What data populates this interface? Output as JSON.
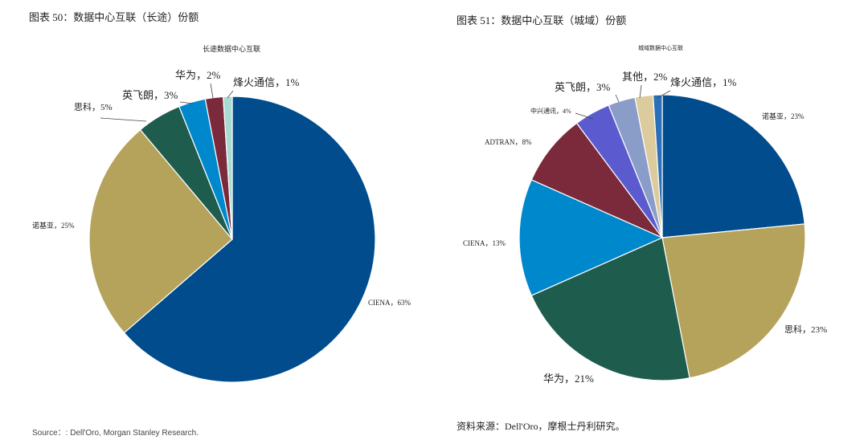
{
  "left": {
    "title": "图表 50：数据中心互联（长途）份额",
    "source": "Source：: Dell'Oro, Morgan Stanley Research."
  },
  "right": {
    "title": "图表 51：数据中心互联（城域）份额",
    "source": "资料来源：Dell'Oro，摩根士丹利研究。"
  },
  "chart_data": [
    {
      "type": "pie",
      "title": "长途数据中心互联",
      "unit": "%",
      "start": "12 o'clock",
      "direction": "clockwise",
      "slices": [
        {
          "label": "CIENA，63%",
          "value": 63,
          "color": "#004C8C"
        },
        {
          "label": "诺基亚，25%",
          "value": 25,
          "color": "#B5A35C"
        },
        {
          "label": "思科，5%",
          "value": 5,
          "color": "#1E5C4E"
        },
        {
          "label": "英飞朗，3%",
          "value": 3,
          "color": "#0088CC"
        },
        {
          "label": "华为，2%",
          "value": 2,
          "color": "#7A2A3A"
        },
        {
          "label": "烽火通信，1%",
          "value": 1,
          "color": "#A8DCD2"
        }
      ]
    },
    {
      "type": "pie",
      "title": "城域数据中心互联",
      "unit": "%",
      "start": "12 o'clock",
      "direction": "clockwise",
      "slices": [
        {
          "label": "诺基亚，23%",
          "value": 23,
          "color": "#004C8C"
        },
        {
          "label": "思科，23%",
          "value": 23,
          "color": "#B5A35C"
        },
        {
          "label": "华为，21%",
          "value": 21,
          "color": "#1E5C4E"
        },
        {
          "label": "CIENA，13%",
          "value": 13,
          "color": "#0088CC"
        },
        {
          "label": "ADTRAN，8%",
          "value": 8,
          "color": "#7A2A3A"
        },
        {
          "label": "中兴通讯，4%",
          "value": 4,
          "color": "#5B5BCF"
        },
        {
          "label": "英飞朗，3%",
          "value": 3,
          "color": "#8A9CC8"
        },
        {
          "label": "其他，2%",
          "value": 2,
          "color": "#DCCB9C"
        },
        {
          "label": "烽火通信，1%",
          "value": 1,
          "color": "#2A6FB8"
        }
      ]
    }
  ]
}
